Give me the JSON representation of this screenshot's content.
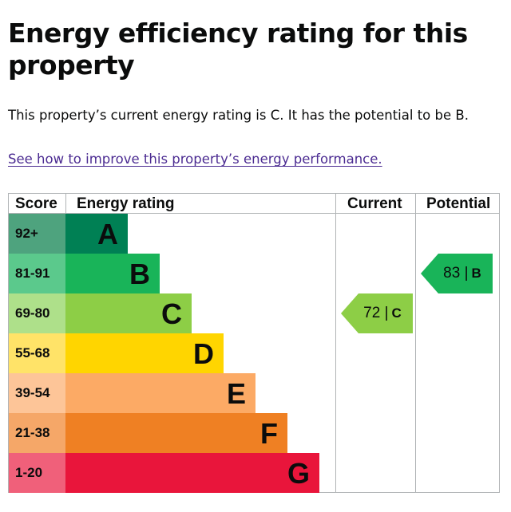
{
  "title": "Energy efficiency rating for this property",
  "summary": "This property’s current energy rating is C. It has the potential to be B.",
  "improve_link": "See how to improve this property’s energy performance.",
  "table": {
    "headers": {
      "score": "Score",
      "rating": "Energy rating",
      "current": "Current",
      "potential": "Potential"
    },
    "bands": [
      {
        "score": "92+",
        "letter": "A",
        "color": "#008054",
        "score_bg": "#4ea37e"
      },
      {
        "score": "81-91",
        "letter": "B",
        "color": "#19b459",
        "score_bg": "#5bc98c"
      },
      {
        "score": "69-80",
        "letter": "C",
        "color": "#8dce46",
        "score_bg": "#aee08a"
      },
      {
        "score": "55-68",
        "letter": "D",
        "color": "#ffd500",
        "score_bg": "#ffe368"
      },
      {
        "score": "39-54",
        "letter": "E",
        "color": "#fcaa65",
        "score_bg": "#fdc598"
      },
      {
        "score": "21-38",
        "letter": "F",
        "color": "#ef8023",
        "score_bg": "#f5a768"
      },
      {
        "score": "1-20",
        "letter": "G",
        "color": "#e9153b",
        "score_bg": "#f0607a"
      }
    ],
    "current": {
      "value": "72",
      "separator": "|",
      "letter": "C",
      "color": "#8dce46"
    },
    "potential": {
      "value": "83",
      "separator": "|",
      "letter": "B",
      "color": "#19b459"
    }
  }
}
